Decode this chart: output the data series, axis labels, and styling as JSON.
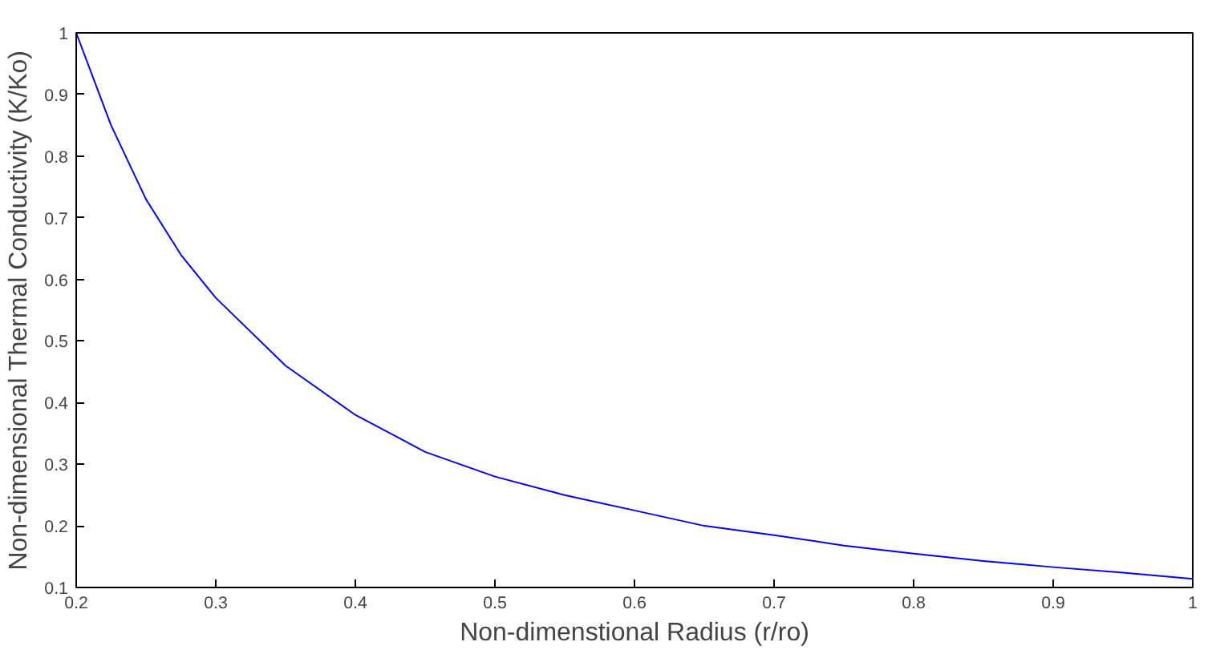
{
  "chart_data": {
    "type": "line",
    "xlabel": "Non-dimenstional Radius (r/ro)",
    "ylabel": "Non-dimensional Thermal Conductivity (K/Ko)",
    "x": [
      0.2,
      0.225,
      0.25,
      0.275,
      0.3,
      0.35,
      0.4,
      0.45,
      0.5,
      0.55,
      0.6,
      0.65,
      0.7,
      0.75,
      0.8,
      0.85,
      0.9,
      0.95,
      1.0
    ],
    "series": [
      {
        "color": "#0000ff",
        "values": [
          1.0,
          0.85,
          0.73,
          0.64,
          0.57,
          0.46,
          0.38,
          0.32,
          0.28,
          0.25,
          0.225,
          0.2,
          0.185,
          0.168,
          0.155,
          0.143,
          0.133,
          0.124,
          0.114
        ]
      }
    ],
    "xlim": [
      0.2,
      1
    ],
    "ylim": [
      0.1,
      1
    ],
    "xticks": [
      0.2,
      0.3,
      0.4,
      0.5,
      0.6,
      0.7,
      0.8,
      0.9,
      1
    ],
    "yticks": [
      0.1,
      0.2,
      0.3,
      0.4,
      0.5,
      0.6,
      0.7,
      0.8,
      0.9,
      1
    ],
    "grid": false,
    "marker": "none",
    "line_style": "solid"
  }
}
